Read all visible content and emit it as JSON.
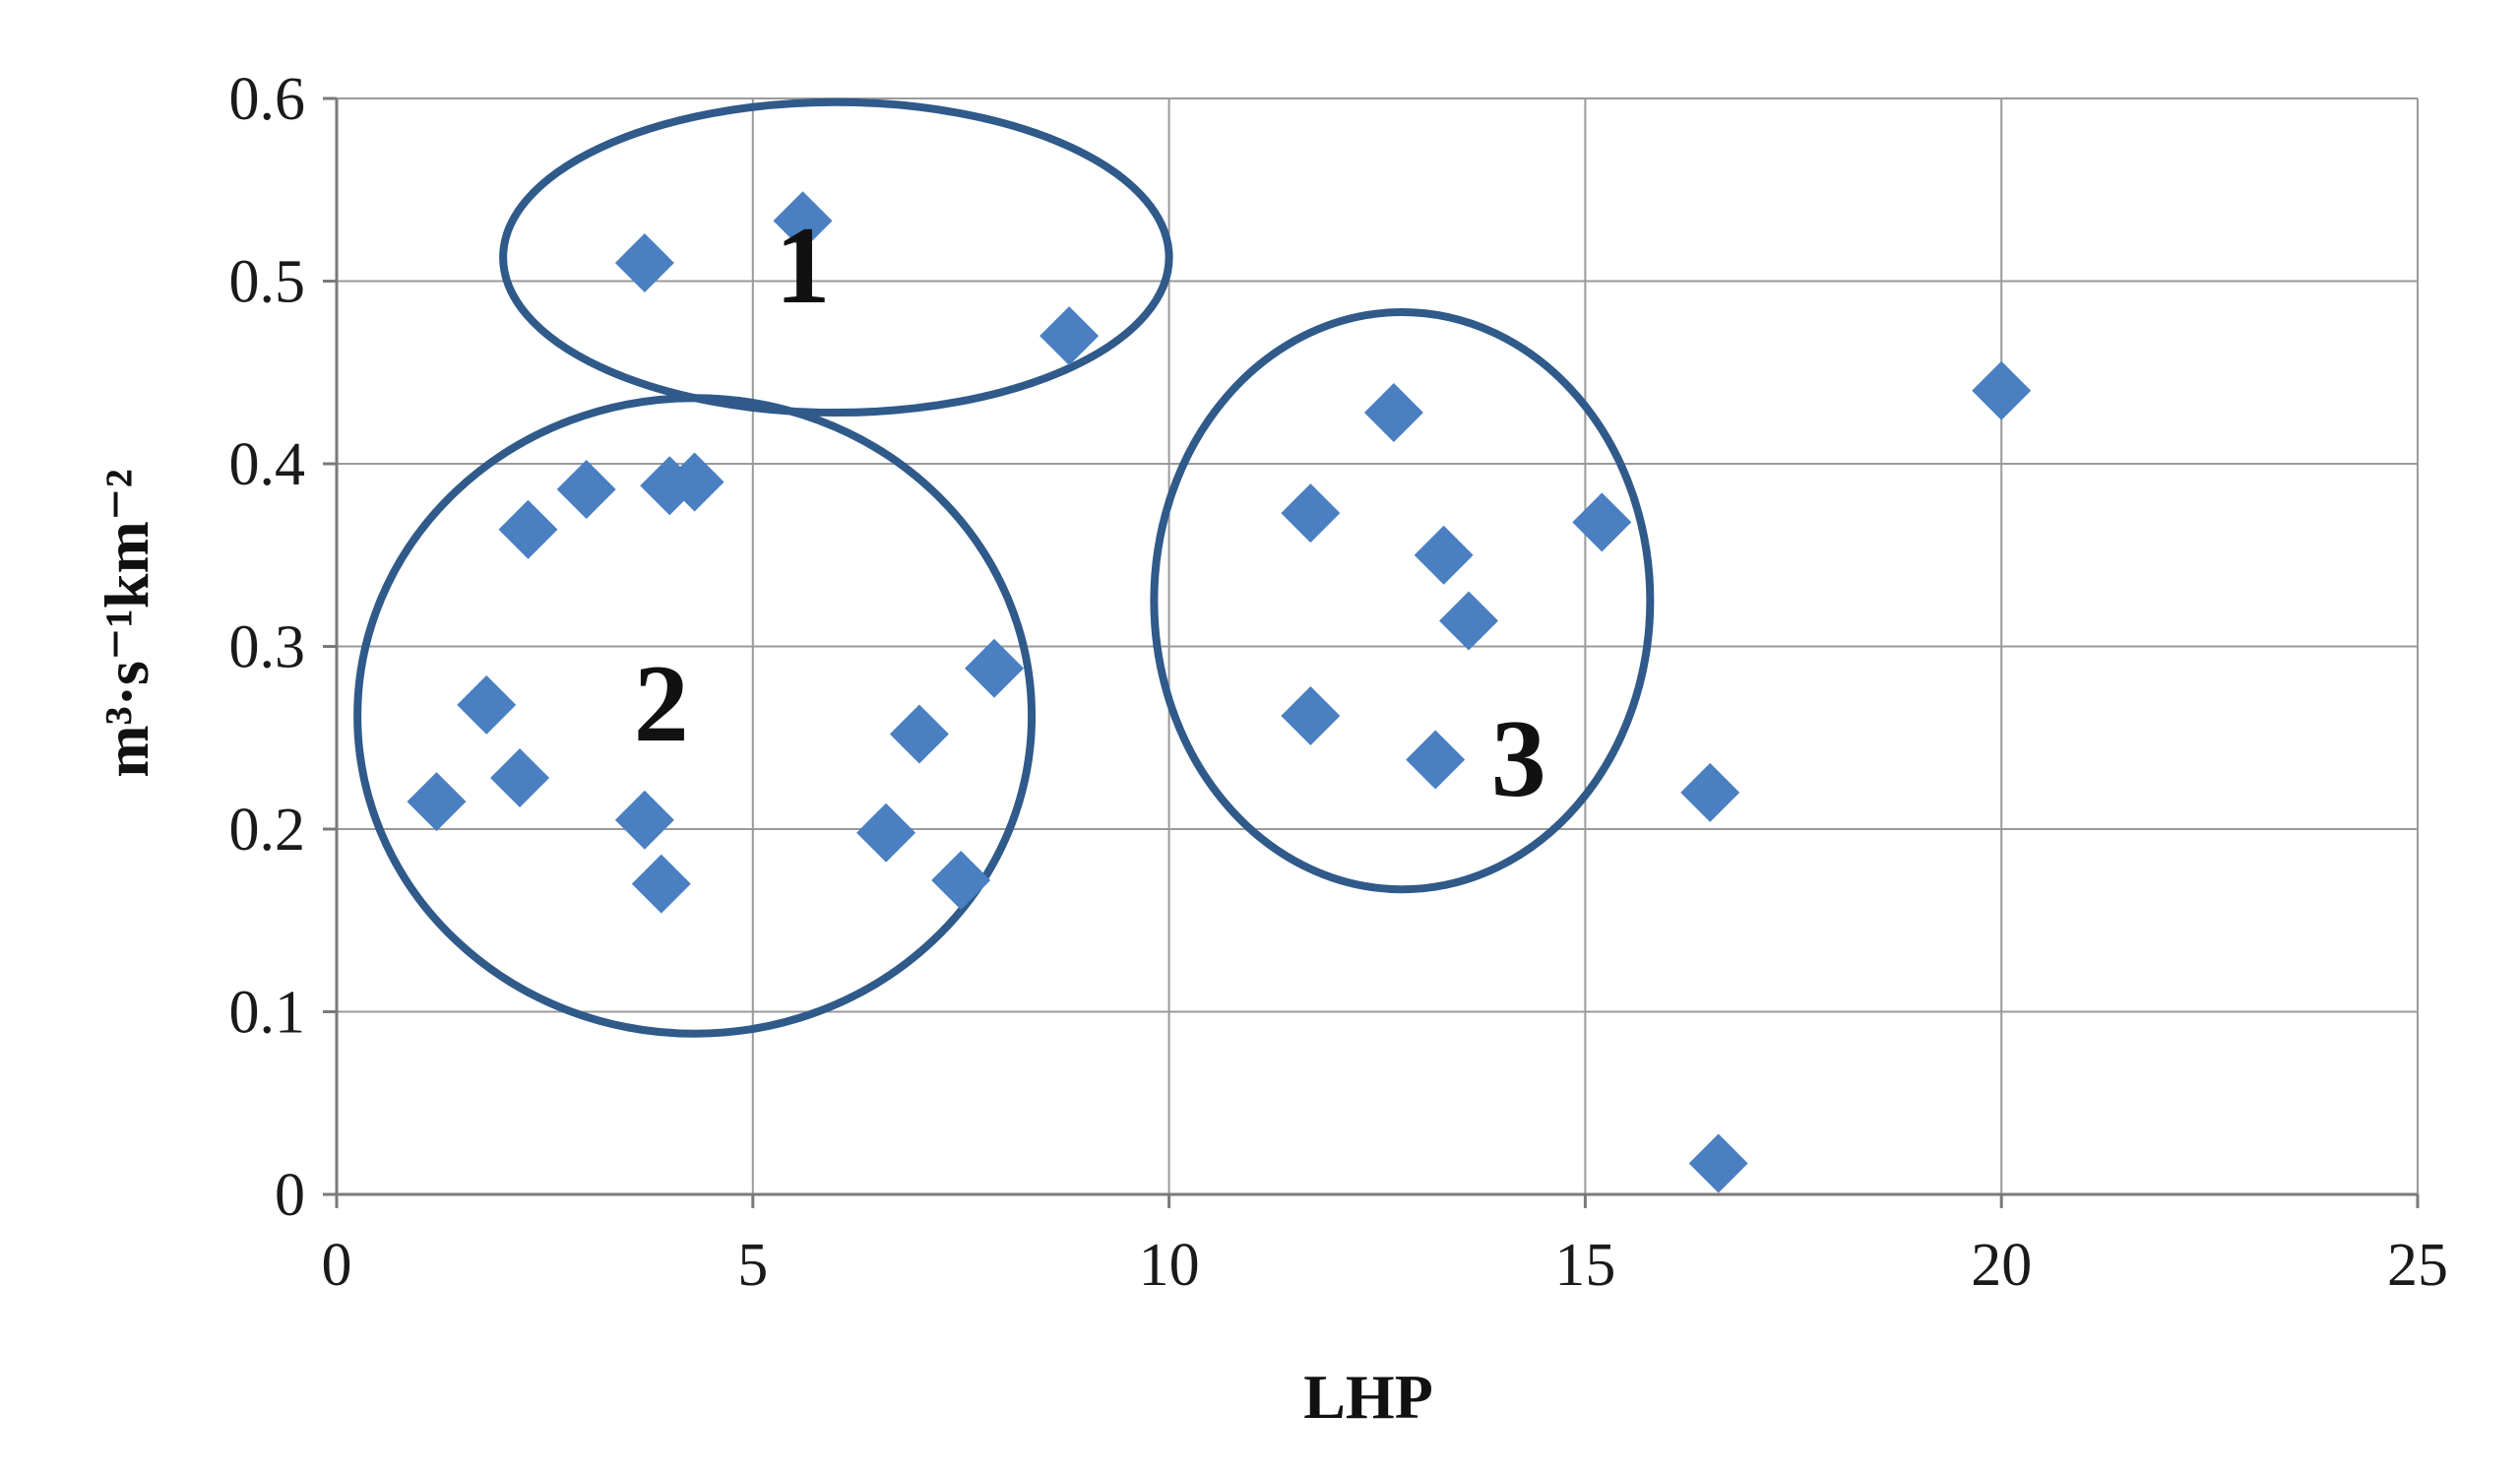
{
  "chart_data": {
    "type": "scatter",
    "title": "",
    "xlabel": "LHP",
    "ylabel": "m³·s⁻¹km⁻²",
    "xlim": [
      0,
      25
    ],
    "ylim": [
      0,
      0.6
    ],
    "xticks": [
      0,
      5,
      10,
      15,
      20,
      25
    ],
    "yticks": [
      0,
      0.1,
      0.2,
      0.3,
      0.4,
      0.5,
      0.6
    ],
    "xtick_labels": [
      "0",
      "5",
      "10",
      "15",
      "20",
      "25"
    ],
    "ytick_labels": [
      "0",
      "0.1",
      "0.2",
      "0.3",
      "0.4",
      "0.5",
      "0.6"
    ],
    "grid": true,
    "legend": "none",
    "marker": "diamond",
    "marker_color": "#4a7fc1",
    "series": [
      {
        "points": [
          [
            3.7,
            0.51
          ],
          [
            5.6,
            0.533
          ],
          [
            8.8,
            0.47
          ],
          [
            1.2,
            0.215
          ],
          [
            1.8,
            0.268
          ],
          [
            2.2,
            0.228
          ],
          [
            2.3,
            0.364
          ],
          [
            3.0,
            0.386
          ],
          [
            3.7,
            0.205
          ],
          [
            3.9,
            0.17
          ],
          [
            4.0,
            0.388
          ],
          [
            4.3,
            0.39
          ],
          [
            6.6,
            0.198
          ],
          [
            7.0,
            0.252
          ],
          [
            7.5,
            0.172
          ],
          [
            7.9,
            0.288
          ],
          [
            11.7,
            0.373
          ],
          [
            11.7,
            0.262
          ],
          [
            12.7,
            0.428
          ],
          [
            13.2,
            0.238
          ],
          [
            13.3,
            0.35
          ],
          [
            13.6,
            0.314
          ],
          [
            15.2,
            0.368
          ],
          [
            16.5,
            0.22
          ],
          [
            16.6,
            0.017
          ],
          [
            20.0,
            0.44
          ]
        ]
      }
    ],
    "annotations": [
      {
        "label": "1",
        "x": 5.6,
        "y": 0.51,
        "shape": "ellipse",
        "rx": 4.0,
        "ry": 0.085,
        "cx": 6.0,
        "cy": 0.513
      },
      {
        "label": "2",
        "x": 3.9,
        "y": 0.27,
        "shape": "ellipse",
        "rx": 4.05,
        "ry": 0.174,
        "cx": 4.3,
        "cy": 0.262
      },
      {
        "label": "3",
        "x": 14.2,
        "y": 0.24,
        "shape": "ellipse",
        "rx": 2.98,
        "ry": 0.158,
        "cx": 12.8,
        "cy": 0.325
      }
    ],
    "annotation_color": "#2f5a8a"
  }
}
